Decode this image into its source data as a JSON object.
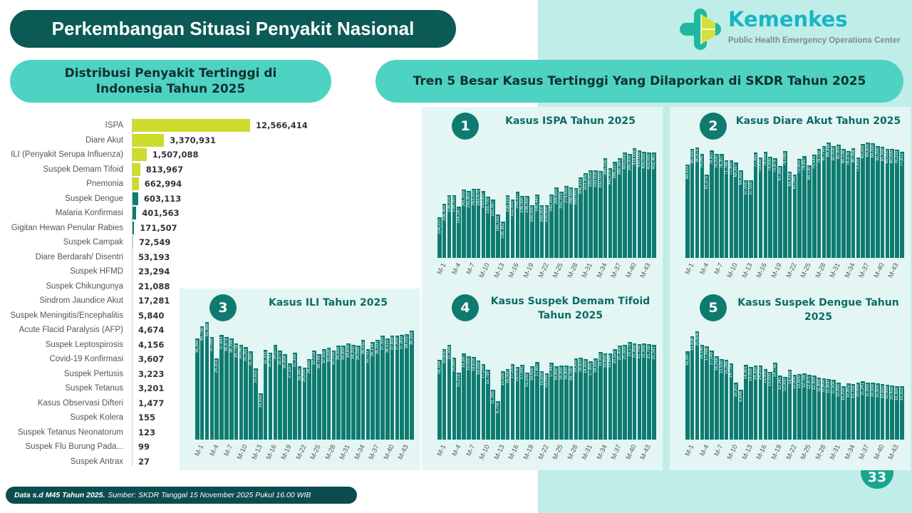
{
  "header": {
    "title": "Perkembangan Situasi Penyakit Nasional"
  },
  "logo": {
    "brand": "Kemenkes",
    "subtitle": "Public Health Emergency Operations Center"
  },
  "left_section": {
    "title": "Distribusi Penyakit Tertinggi di Indonesia Tahun 2025"
  },
  "right_section": {
    "title": "Tren 5 Besar Kasus Tertinggi Yang Dilaporkan di SKDR Tahun 2025"
  },
  "colors": {
    "top5": "#cddc2b",
    "other": "#0e7b70",
    "minor": "#a8d8d4",
    "bar": "#0e7b70"
  },
  "chart_data": [
    {
      "type": "bar",
      "orientation": "horizontal",
      "title": "Distribusi Penyakit Tertinggi di Indonesia Tahun 2025",
      "categories": [
        "ISPA",
        "Diare Akut",
        "ILI (Penyakit Serupa Influenza)",
        "Suspek Demam Tifoid",
        "Pnemonia",
        "Suspek Dengue",
        "Malaria Konfirmasi",
        "Gigitan Hewan Penular Rabies",
        "Suspek Campak",
        "Diare Berdarah/ Disentri",
        "Suspek HFMD",
        "Suspek Chikungunya",
        "Sindrom Jaundice Akut",
        "Suspek Meningitis/Encephalitis",
        "Acute Flacid Paralysis (AFP)",
        "Suspek Leptospirosis",
        "Covid-19 Konfirmasi",
        "Suspek Pertusis",
        "Suspek Tetanus",
        "Kasus Observasi Difteri",
        "Suspek Kolera",
        "Suspek Tetanus Neonatorum",
        "Suspek Flu Burung Pada...",
        "Suspek Antrax"
      ],
      "values": [
        12566414,
        3370931,
        1507088,
        813967,
        662994,
        603113,
        401563,
        171507,
        72549,
        53193,
        23294,
        21088,
        17281,
        5840,
        4674,
        4156,
        3607,
        3223,
        3201,
        1477,
        155,
        123,
        99,
        27
      ],
      "labels": [
        "12,566,414",
        "3,370,931",
        "1,507,088",
        "813,967",
        "662,994",
        "603,113",
        "401,563",
        "171,507",
        "72,549",
        "53,193",
        "23,294",
        "21,088",
        "17,281",
        "5,840",
        "4,674",
        "4,156",
        "3,607",
        "3,223",
        "3,201",
        "1,477",
        "155",
        "123",
        "99",
        "27"
      ]
    },
    {
      "type": "bar",
      "number": "1",
      "title": "Kasus ISPA Tahun 2025",
      "values": [
        154221,
        206402,
        238000,
        238163,
        194187,
        261000,
        255850,
        263000,
        263470,
        253837,
        233700,
        222097,
        165192,
        139382,
        238193,
        222000,
        253317,
        236000,
        236000,
        200000,
        240440,
        200000,
        200500,
        242000,
        269000,
        252229,
        273000,
        268000,
        265000,
        306212,
        323355,
        333000,
        333000,
        332000,
        380035,
        342314,
        366237,
        380564,
        403000,
        395000,
        418000,
        410000,
        405000,
        403000,
        402461
      ]
    },
    {
      "type": "bar",
      "number": "2",
      "title": "Kasus Diare Akut Tahun 2025",
      "values": [
        68633,
        80000,
        80870,
        76062,
        61075,
        78957,
        76000,
        76357,
        71768,
        71500,
        69957,
        64353,
        57000,
        57000,
        77491,
        73630,
        78000,
        74000,
        72874,
        67368,
        78086,
        63418,
        61060,
        72403,
        74897,
        68130,
        75545,
        79732,
        81790,
        84434,
        82000,
        82900,
        80108,
        78378,
        80358,
        73509,
        83500,
        84600,
        84000,
        82000,
        81500,
        80000,
        80000,
        79233,
        77812
      ]
    },
    {
      "type": "bar",
      "number": "3",
      "title": "Kasus ILI Tahun 2025",
      "values": [
        36360,
        40739,
        42364,
        37065,
        29303,
        37641,
        36873,
        36398,
        34718,
        34060,
        33261,
        31960,
        25652,
        16650,
        32331,
        31233,
        34077,
        32071,
        30854,
        27537,
        31309,
        26447,
        26000,
        28890,
        32018,
        30744,
        32500,
        33000,
        32000,
        34000,
        33800,
        34600,
        34200,
        34000,
        36032,
        32711,
        35134,
        36000,
        37500,
        36510,
        37600,
        37600,
        37800,
        38000,
        39355
      ]
    },
    {
      "type": "bar",
      "number": "4",
      "title": "Kasus Suspek Demam Tifoid Tahun 2025",
      "values": [
        18164,
        20600,
        21554,
        18680,
        15215,
        19587,
        19000,
        18818,
        18000,
        17229,
        15799,
        11265,
        8700,
        15500,
        16000,
        17200,
        16478,
        17000,
        15200,
        16600,
        17657,
        15500,
        15085,
        17442,
        16600,
        16900,
        16800,
        16700,
        18500,
        18600,
        18300,
        17800,
        18500,
        19990,
        19650,
        19664,
        20529,
        21400,
        21600,
        22179,
        21800,
        21700,
        21900,
        21700,
        21541
      ]
    },
    {
      "type": "bar",
      "number": "5",
      "title": "Kasus Suspek Dengue Tahun 2025",
      "values": [
        16997,
        19836,
        20806,
        18180,
        17996,
        17049,
        16068,
        15500,
        15285,
        14714,
        10901,
        9646,
        14391,
        14000,
        14300,
        14200,
        13500,
        13000,
        14736,
        12341,
        12000,
        13448,
        12500,
        12600,
        12700,
        12471,
        12300,
        11900,
        11800,
        11600,
        11500,
        10900,
        10200,
        10852,
        10701,
        10900,
        11241,
        11000,
        10900,
        10800,
        10622,
        10500,
        10400,
        10300,
        10313
      ]
    }
  ],
  "x_ticks": [
    "M-1",
    "M-4",
    "M-7",
    "M-10",
    "M-13",
    "M-16",
    "M-19",
    "M-22",
    "M-25",
    "M-28",
    "M-31",
    "M-34",
    "M-37",
    "M-40",
    "M-43"
  ],
  "footer": {
    "bold": "Data s.d M45 Tahun 2025.",
    "text": "Sumber: SKDR Tanggal 15 November 2025 Pukul 16.00 WIB"
  },
  "page_number": "33"
}
